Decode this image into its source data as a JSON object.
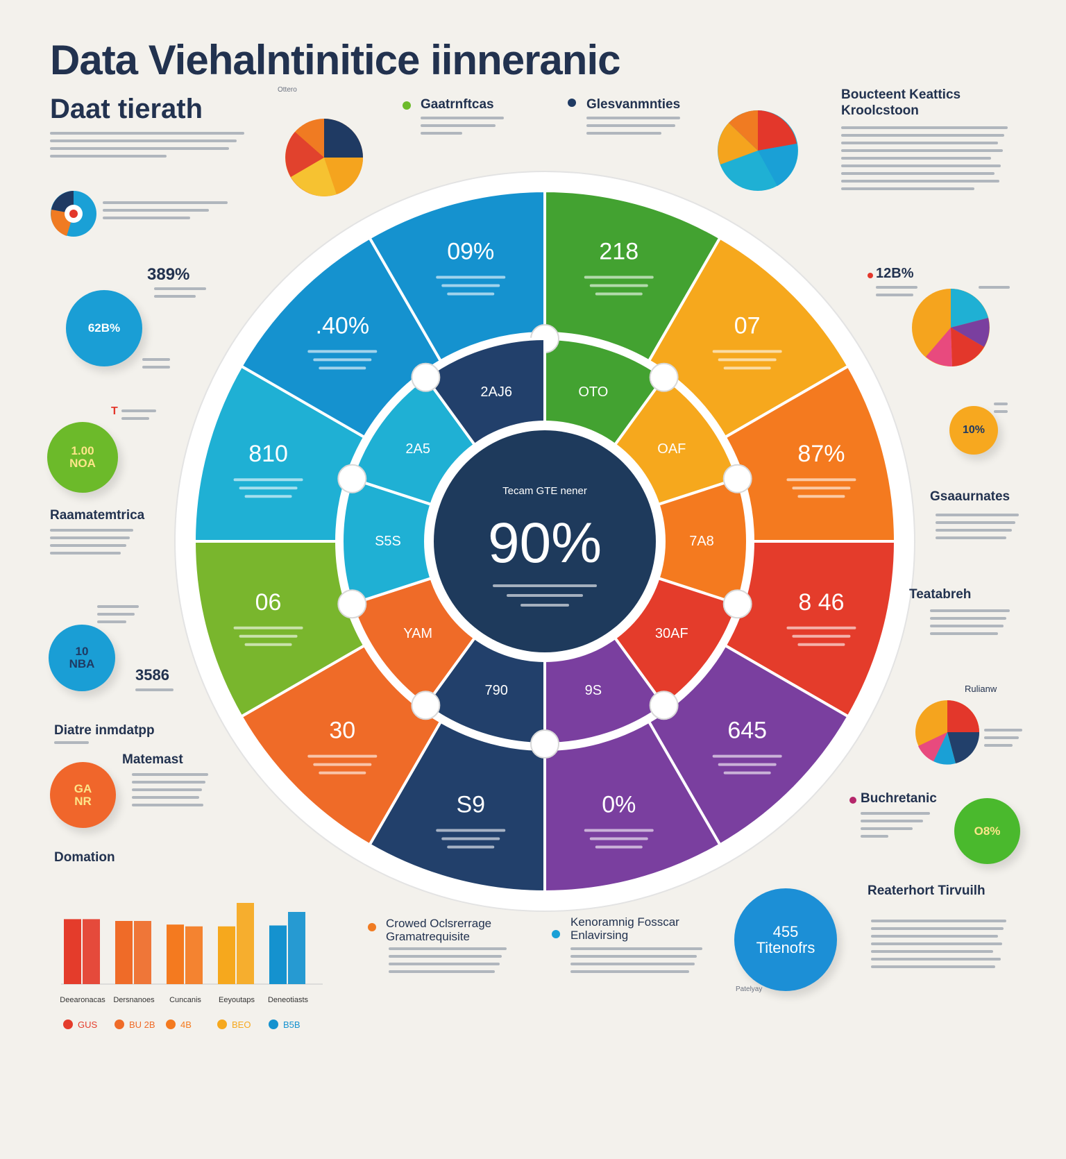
{
  "header": {
    "title": "Data Viehalntinitice iinneranic",
    "subtitle": "Dаat tierath",
    "top_caption": "Ottero",
    "right_heading": "Boucteent Keattics Kroolcstoon"
  },
  "labels": {
    "gasanrfitcas": "Gaatrnftcas",
    "glevammiaties": "Glesvanmnties",
    "raamatemtrica": "Raamatemtrica",
    "gsaaurnates": "Gsaaurnates",
    "teatabreh": "Teatabreh",
    "diatre_inmdatpp": "Diatre inmdatpp",
    "matemast": "Matemast",
    "domation": "Domation",
    "buchretanic": "Buchretanic",
    "reaterhort": "Reaterhort Tirvuilh",
    "crowed": "Crowed Oclsrerrage Gramatrequisite",
    "fosscar": "Kenoramnig Fosscar Enlavirsing",
    "rulianw": "Rulianw",
    "patelyay": "Patelyay"
  },
  "stats": {
    "left_pct": "389%",
    "right_pct": "12B%",
    "left_35": "3586",
    "t_mark": "T"
  },
  "bubbles": [
    {
      "id": "b1",
      "text": "62B%",
      "color": "#1a9ed5"
    },
    {
      "id": "b2",
      "text": "1.00\nNOA",
      "color": "#6cba2a"
    },
    {
      "id": "b3",
      "text": "10\nNBA",
      "color": "#1a9ed5"
    },
    {
      "id": "b4",
      "text": "GA\nNR",
      "color": "#f0662b"
    },
    {
      "id": "b5",
      "text": "10%",
      "color": "#f7a81f"
    },
    {
      "id": "b6",
      "text": "O8%",
      "color": "#4ab92d"
    },
    {
      "id": "b7",
      "text": "455\nTitenofrs",
      "color": "#1c8fd6"
    }
  ],
  "colors": {
    "green": "#43a231",
    "yellow": "#f6a81d",
    "orange": "#f47a1f",
    "red": "#e43c2b",
    "purple": "#7a3f9f",
    "navy": "#22406b",
    "orange2": "#ef6b28",
    "lime": "#79b62d",
    "cyan": "#1fb0d4",
    "blue": "#1592cf",
    "center": "#1e3a5c"
  },
  "chart_data": [
    {
      "type": "pie",
      "categories": [
        "218",
        "07",
        "87",
        "846",
        "645",
        "0%",
        "S9",
        "30",
        "06",
        "810",
        "40%",
        "09%"
      ],
      "values": [
        1,
        1,
        1,
        1,
        1,
        1,
        1,
        1,
        1,
        1,
        1,
        1
      ],
      "slice_labels": [
        "218",
        "07",
        "87%",
        "8 46",
        "645",
        "0%",
        "S9",
        "30",
        "06",
        "810",
        ".40%",
        "09%"
      ],
      "inner_labels": [
        "OTO",
        "OAF",
        "7A8",
        "30AF",
        "9S",
        "790",
        "YAM",
        "S5S",
        "2A5",
        "2AJ6"
      ],
      "center_title": "Tecam GTE nener",
      "center_value": "90%"
    },
    {
      "type": "bar",
      "categories": [
        "Deearonacas",
        "Dersnanoes",
        "Cuncanis",
        "Eeyoutaps",
        "Deneotiasts"
      ],
      "series": [
        {
          "values": [
            72,
            70,
            66,
            64,
            65
          ]
        },
        {
          "values": [
            72,
            70,
            64,
            90,
            80
          ]
        }
      ],
      "legend": [
        "GUS",
        "BU 2B",
        "4B",
        "BEO",
        "B5B"
      ],
      "ylim": [
        0,
        100
      ]
    }
  ]
}
